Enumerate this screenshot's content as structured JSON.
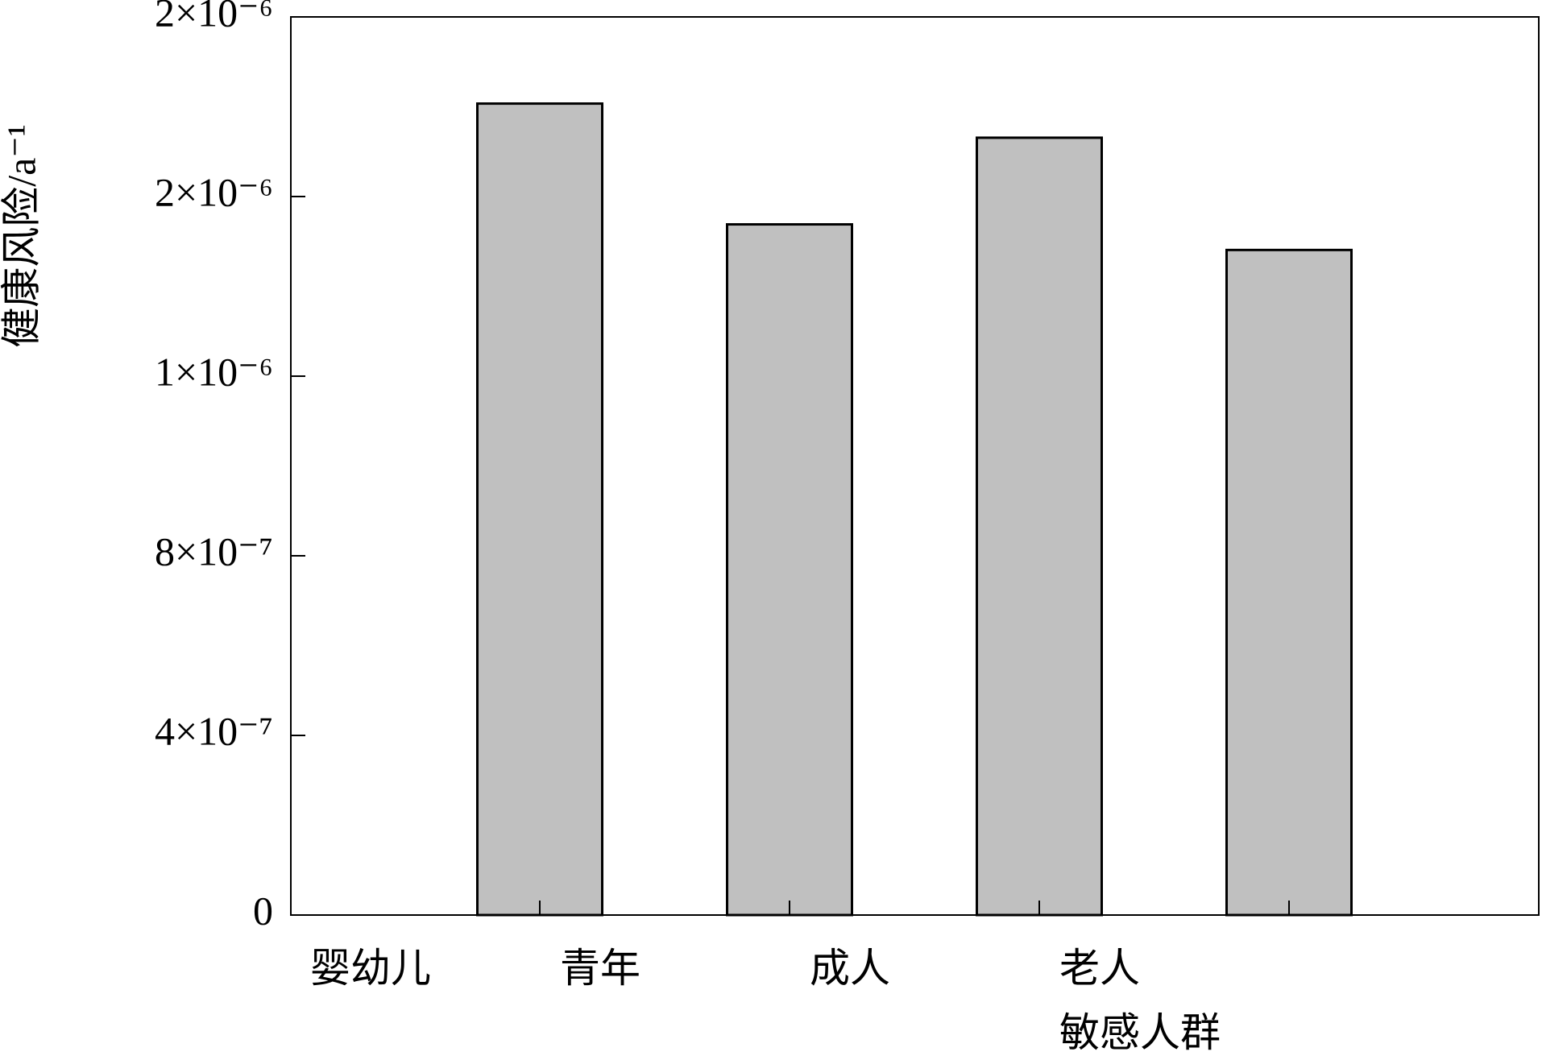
{
  "chart_data": {
    "type": "bar",
    "y_label": "健康风险/a⁻¹",
    "categories": [
      "婴幼儿",
      "青年",
      "成人",
      "老人\n敏感人群"
    ],
    "values": [
      1.807e-06,
      1.538e-06,
      1.731e-06,
      1.481e-06
    ],
    "color": "#c0c0c0",
    "ylim": [
      0,
      2e-06
    ],
    "yticks": [
      0,
      {
        "value": 4e-07,
        "label": "4×10⁻⁷"
      },
      {
        "value": 8e-07,
        "label": "8×10⁻⁷"
      },
      {
        "value": 1.2e-06,
        "label": "1×10⁻⁶"
      },
      {
        "value": 1.6e-06,
        "label": "2×10⁻⁶"
      },
      {
        "value": 2e-06,
        "label": "2×10⁻⁶"
      }
    ],
    "grid": false
  }
}
